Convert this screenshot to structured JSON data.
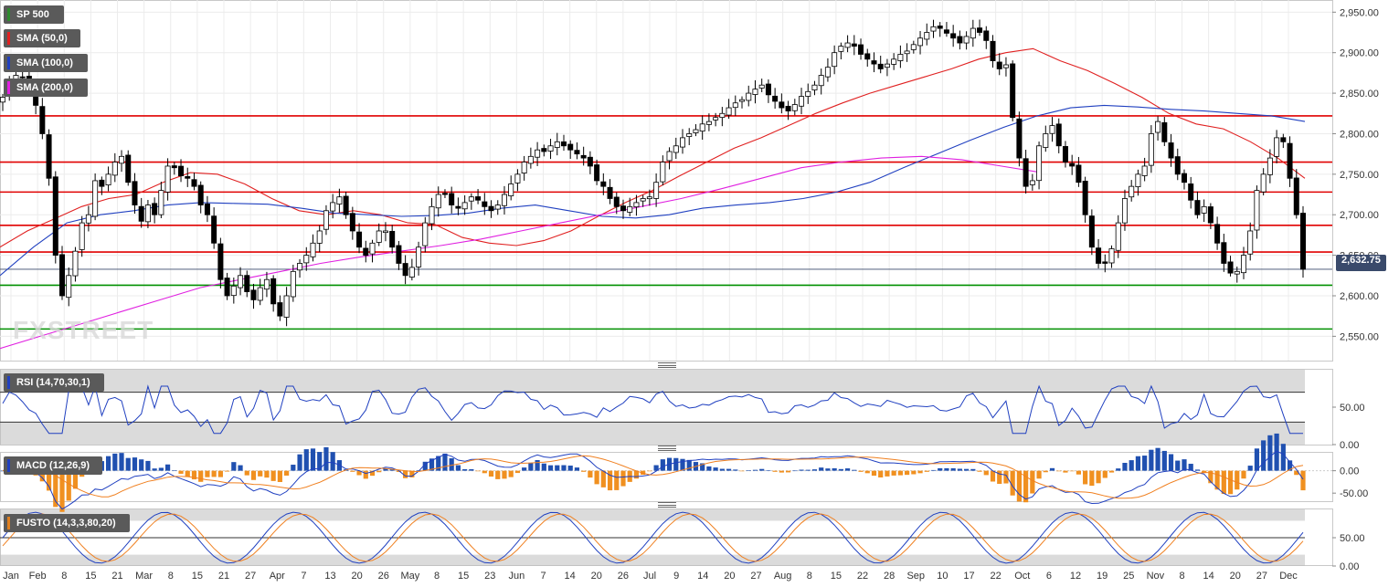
{
  "symbol": "SP 500",
  "last_price_label": "2,632.75",
  "watermark": "FXSTREET",
  "legend": [
    {
      "label": "SP 500",
      "color": "#2e8b2e"
    },
    {
      "label": "SMA (50,0)",
      "color": "#e02020"
    },
    {
      "label": "SMA (100,0)",
      "color": "#2040c0"
    },
    {
      "label": "SMA (200,0)",
      "color": "#e020e0"
    }
  ],
  "indicators": {
    "rsi_label": "RSI (14,70,30,1)",
    "macd_label": "MACD (12,26,9)",
    "fusto_label": "FUSTO (14,3,3,80,20)"
  },
  "x_labels": [
    "Jan",
    "Feb",
    "8",
    "15",
    "21",
    "Mar",
    "8",
    "15",
    "21",
    "27",
    "Apr",
    "7",
    "13",
    "20",
    "26",
    "May",
    "8",
    "15",
    "23",
    "Jun",
    "7",
    "14",
    "20",
    "26",
    "Jul",
    "9",
    "14",
    "20",
    "27",
    "Aug",
    "8",
    "15",
    "22",
    "28",
    "Sep",
    "10",
    "17",
    "22",
    "Oct",
    "6",
    "12",
    "19",
    "25",
    "Nov",
    "8",
    "14",
    "20",
    "27",
    "Dec"
  ],
  "chart_data": [
    {
      "type": "candlestick",
      "title": "SP 500",
      "ylim": [
        2520,
        2965
      ],
      "y_ticks": [
        "2,950.00",
        "2,900.00",
        "2,850.00",
        "2,800.00",
        "2,750.00",
        "2,700.00",
        "2,650.00",
        "2,600.00",
        "2,550.00"
      ],
      "last_price": 2632.75,
      "horizontal_levels": [
        {
          "value": 2822,
          "color": "#e00000"
        },
        {
          "value": 2765,
          "color": "#e00000"
        },
        {
          "value": 2728,
          "color": "#e00000"
        },
        {
          "value": 2687,
          "color": "#e00000"
        },
        {
          "value": 2654,
          "color": "#e00000"
        },
        {
          "value": 2613,
          "color": "#009000"
        },
        {
          "value": 2559,
          "color": "#009000"
        }
      ],
      "closes": [
        2845,
        2862,
        2872,
        2870,
        2855,
        2835,
        2800,
        2745,
        2650,
        2600,
        2625,
        2655,
        2690,
        2700,
        2742,
        2735,
        2750,
        2765,
        2772,
        2740,
        2712,
        2692,
        2712,
        2700,
        2730,
        2760,
        2758,
        2748,
        2745,
        2735,
        2712,
        2700,
        2665,
        2620,
        2600,
        2612,
        2625,
        2605,
        2595,
        2610,
        2620,
        2590,
        2575,
        2600,
        2630,
        2640,
        2650,
        2665,
        2680,
        2705,
        2715,
        2722,
        2700,
        2680,
        2660,
        2650,
        2665,
        2680,
        2680,
        2660,
        2640,
        2625,
        2635,
        2660,
        2690,
        2710,
        2725,
        2725,
        2712,
        2708,
        2715,
        2722,
        2718,
        2710,
        2705,
        2712,
        2725,
        2738,
        2750,
        2765,
        2772,
        2780,
        2778,
        2785,
        2790,
        2785,
        2780,
        2775,
        2770,
        2760,
        2742,
        2735,
        2720,
        2710,
        2705,
        2710,
        2715,
        2720,
        2722,
        2740,
        2765,
        2778,
        2785,
        2795,
        2800,
        2805,
        2812,
        2815,
        2820,
        2825,
        2832,
        2838,
        2842,
        2850,
        2855,
        2860,
        2848,
        2840,
        2832,
        2828,
        2836,
        2846,
        2852,
        2860,
        2872,
        2882,
        2900,
        2908,
        2912,
        2908,
        2898,
        2892,
        2886,
        2880,
        2886,
        2892,
        2898,
        2902,
        2910,
        2918,
        2925,
        2932,
        2930,
        2924,
        2918,
        2912,
        2920,
        2930,
        2925,
        2915,
        2890,
        2880,
        2885,
        2820,
        2770,
        2735,
        2742,
        2785,
        2800,
        2810,
        2785,
        2765,
        2760,
        2740,
        2700,
        2660,
        2640,
        2640,
        2658,
        2690,
        2720,
        2735,
        2750,
        2760,
        2800,
        2815,
        2790,
        2770,
        2750,
        2740,
        2718,
        2700,
        2710,
        2690,
        2665,
        2640,
        2628,
        2630,
        2650,
        2680,
        2730,
        2750,
        2770,
        2795,
        2790,
        2745,
        2700,
        2632.75
      ],
      "sma_50": [
        2660,
        2680,
        2695,
        2710,
        2720,
        2725,
        2740,
        2752,
        2750,
        2738,
        2720,
        2705,
        2700,
        2705,
        2700,
        2690,
        2688,
        2672,
        2665,
        2662,
        2668,
        2680,
        2698,
        2715,
        2730,
        2748,
        2765,
        2782,
        2795,
        2810,
        2825,
        2838,
        2850,
        2860,
        2870,
        2880,
        2892,
        2900,
        2905,
        2890,
        2878,
        2862,
        2845,
        2825,
        2812,
        2806,
        2790,
        2770,
        2745
      ],
      "sma_100": [
        2625,
        2660,
        2690,
        2700,
        2705,
        2712,
        2715,
        2714,
        2713,
        2708,
        2702,
        2700,
        2698,
        2699,
        2702,
        2708,
        2712,
        2705,
        2698,
        2696,
        2700,
        2708,
        2712,
        2715,
        2720,
        2728,
        2740,
        2758,
        2775,
        2792,
        2808,
        2822,
        2832,
        2835,
        2833,
        2830,
        2828,
        2825,
        2822,
        2815
      ],
      "sma_200": [
        2535,
        2550,
        2565,
        2580,
        2595,
        2610,
        2620,
        2630,
        2640,
        2648,
        2655,
        2662,
        2670,
        2680,
        2690,
        2700,
        2710,
        2720,
        2732,
        2745,
        2758,
        2765,
        2770,
        2772,
        2768,
        2760,
        2752
      ],
      "rsi": {
        "ylim": [
          0,
          100
        ],
        "y_ticks": [
          "50.00",
          "0.00"
        ],
        "upper": 70,
        "lower": 30
      },
      "macd": {
        "y_ticks": [
          "0.00",
          "-50.00"
        ]
      },
      "fusto": {
        "ylim": [
          0,
          100
        ],
        "y_ticks": [
          "50.00",
          "0.00"
        ],
        "upper": 80,
        "lower": 20
      }
    }
  ]
}
